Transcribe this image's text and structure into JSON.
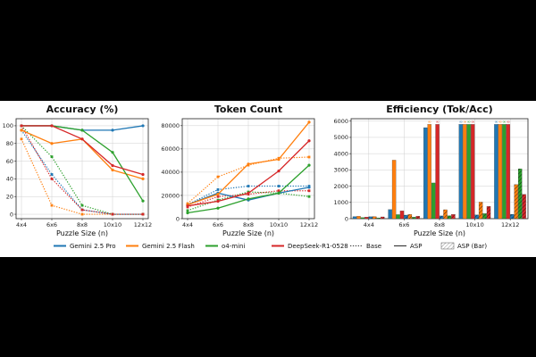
{
  "colors": {
    "gemini_pro": "#1f77b4",
    "gemini_flash": "#ff7f0e",
    "o4_mini": "#2ca02c",
    "deepseek": "#d62728"
  },
  "legend": [
    {
      "label": "Gemini 2.5 Pro",
      "color": "#1f77b4",
      "kind": "line"
    },
    {
      "label": "Gemini 2.5 Flash",
      "color": "#ff7f0e",
      "kind": "line"
    },
    {
      "label": "o4-mini",
      "color": "#2ca02c",
      "kind": "line"
    },
    {
      "label": "DeepSeek-R1-0528",
      "color": "#d62728",
      "kind": "line"
    },
    {
      "label": "Base",
      "color": "#333333",
      "kind": "dotted"
    },
    {
      "label": "ASP",
      "color": "#333333",
      "kind": "solid"
    },
    {
      "label": "ASP (Bar)",
      "color": "#888888",
      "kind": "hatch"
    }
  ],
  "chart_data": [
    {
      "type": "line",
      "title": "Accuracy (%)",
      "xlabel": "Puzzle Size (n)",
      "ylabel": "",
      "categories": [
        "4x4",
        "6x6",
        "8x8",
        "10x10",
        "12x12"
      ],
      "ylim": [
        -5,
        108
      ],
      "yticks": [
        0,
        20,
        40,
        60,
        80,
        100
      ],
      "grid": true,
      "series": [
        {
          "name": "Gemini 2.5 Pro ASP",
          "model": "gemini_pro",
          "style": "solid",
          "values": [
            100,
            100,
            95,
            95,
            100
          ]
        },
        {
          "name": "Gemini 2.5 Flash ASP",
          "model": "gemini_flash",
          "style": "solid",
          "values": [
            95,
            80,
            85,
            50,
            40
          ]
        },
        {
          "name": "o4-mini ASP",
          "model": "o4_mini",
          "style": "solid",
          "values": [
            100,
            100,
            95,
            70,
            15
          ]
        },
        {
          "name": "DeepSeek-R1-0528 ASP",
          "model": "deepseek",
          "style": "solid",
          "values": [
            100,
            100,
            85,
            55,
            45
          ]
        },
        {
          "name": "Gemini 2.5 Pro Base",
          "model": "gemini_pro",
          "style": "dotted",
          "values": [
            95,
            45,
            5,
            0,
            0
          ]
        },
        {
          "name": "Gemini 2.5 Flash Base",
          "model": "gemini_flash",
          "style": "dotted",
          "values": [
            85,
            10,
            0,
            0,
            0
          ]
        },
        {
          "name": "o4-mini Base",
          "model": "o4_mini",
          "style": "dotted",
          "values": [
            100,
            65,
            10,
            0,
            0
          ]
        },
        {
          "name": "DeepSeek-R1-0528 Base",
          "model": "deepseek",
          "style": "dotted",
          "values": [
            100,
            40,
            5,
            0,
            0
          ]
        }
      ]
    },
    {
      "type": "line",
      "title": "Token Count",
      "xlabel": "Puzzle Size (n)",
      "ylabel": "",
      "categories": [
        "4x4",
        "6x6",
        "8x8",
        "10x10",
        "12x12"
      ],
      "ylim": [
        0,
        86000
      ],
      "yticks": [
        0,
        20000,
        40000,
        60000,
        80000
      ],
      "grid": true,
      "series": [
        {
          "name": "Gemini 2.5 Pro ASP",
          "model": "gemini_pro",
          "style": "solid",
          "values": [
            12000,
            22000,
            16000,
            22000,
            27000
          ]
        },
        {
          "name": "Gemini 2.5 Flash ASP",
          "model": "gemini_flash",
          "style": "solid",
          "values": [
            12000,
            21000,
            47000,
            51000,
            83000
          ]
        },
        {
          "name": "o4-mini ASP",
          "model": "o4_mini",
          "style": "solid",
          "values": [
            5000,
            9000,
            17000,
            22000,
            46000
          ]
        },
        {
          "name": "DeepSeek-R1-0528 ASP",
          "model": "deepseek",
          "style": "solid",
          "values": [
            11000,
            15000,
            22000,
            41000,
            67000
          ]
        },
        {
          "name": "Gemini 2.5 Pro Base",
          "model": "gemini_pro",
          "style": "dotted",
          "values": [
            12000,
            25000,
            28000,
            28000,
            28000
          ]
        },
        {
          "name": "Gemini 2.5 Flash Base",
          "model": "gemini_flash",
          "style": "dotted",
          "values": [
            13000,
            36000,
            46000,
            52000,
            53000
          ]
        },
        {
          "name": "o4-mini Base",
          "model": "o4_mini",
          "style": "dotted",
          "values": [
            7000,
            16000,
            23000,
            22000,
            19000
          ]
        },
        {
          "name": "DeepSeek-R1-0528 Base",
          "model": "deepseek",
          "style": "dotted",
          "values": [
            10000,
            19000,
            21000,
            24000,
            24000
          ]
        }
      ]
    },
    {
      "type": "bar",
      "title": "Efficiency (Tok/Acc)",
      "xlabel": "Puzzle Size (n)",
      "ylabel": "",
      "categories": [
        "4x4",
        "6x6",
        "8x8",
        "10x10",
        "12x12"
      ],
      "ylim": [
        0,
        6150
      ],
      "yticks": [
        0,
        1000,
        2000,
        3000,
        4000,
        5000,
        6000
      ],
      "grid": true,
      "overflow_marker": "∞",
      "series": [
        {
          "name": "Gemini 2.5 Pro Base",
          "model": "gemini_pro",
          "hatch": false,
          "values": [
            130,
            560,
            5600,
            5800,
            5800
          ],
          "overflow": [
            false,
            false,
            false,
            true,
            true
          ]
        },
        {
          "name": "Gemini 2.5 Flash Base",
          "model": "gemini_flash",
          "hatch": false,
          "values": [
            150,
            3600,
            5800,
            5800,
            5800
          ],
          "overflow": [
            false,
            false,
            true,
            true,
            true
          ]
        },
        {
          "name": "o4-mini Base",
          "model": "o4_mini",
          "hatch": false,
          "values": [
            70,
            250,
            2200,
            5800,
            5800
          ],
          "overflow": [
            false,
            false,
            false,
            true,
            true
          ]
        },
        {
          "name": "DeepSeek-R1-0528 Base",
          "model": "deepseek",
          "hatch": false,
          "values": [
            100,
            480,
            5800,
            5800,
            5800
          ],
          "overflow": [
            false,
            false,
            true,
            true,
            true
          ]
        },
        {
          "name": "Gemini 2.5 Pro ASP",
          "model": "gemini_pro",
          "hatch": true,
          "values": [
            120,
            220,
            170,
            230,
            270
          ],
          "overflow": [
            false,
            false,
            false,
            false,
            false
          ]
        },
        {
          "name": "Gemini 2.5 Flash ASP",
          "model": "gemini_flash",
          "hatch": true,
          "values": [
            130,
            260,
            550,
            1020,
            2100
          ],
          "overflow": [
            false,
            false,
            false,
            false,
            false
          ]
        },
        {
          "name": "o4-mini ASP",
          "model": "o4_mini",
          "hatch": true,
          "values": [
            50,
            90,
            180,
            310,
            3070
          ],
          "overflow": [
            false,
            false,
            false,
            false,
            false
          ]
        },
        {
          "name": "DeepSeek-R1-0528 ASP",
          "model": "deepseek",
          "hatch": true,
          "values": [
            110,
            150,
            260,
            750,
            1490
          ],
          "overflow": [
            false,
            false,
            false,
            false,
            false
          ]
        }
      ]
    }
  ]
}
